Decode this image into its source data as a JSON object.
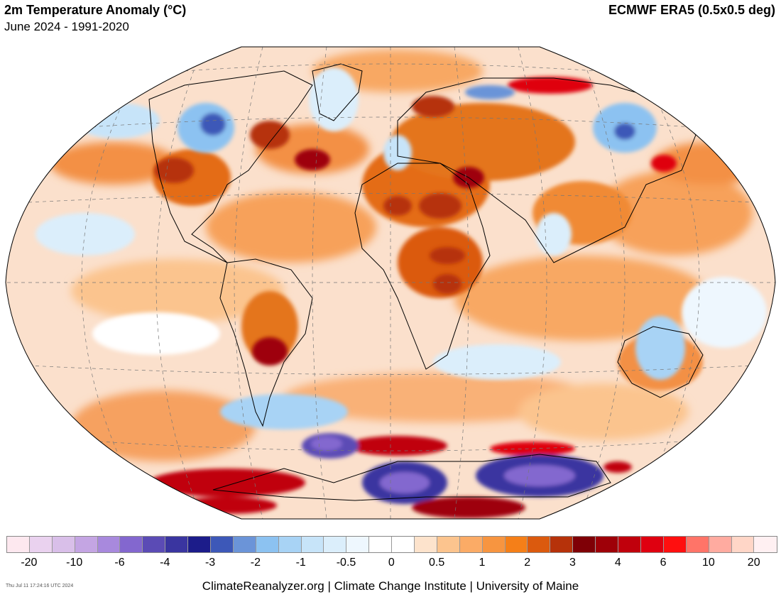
{
  "header": {
    "title": "2m Temperature Anomaly (°C)",
    "period": "June 2024 - 1991-2020",
    "dataset": "ECMWF ERA5 (0.5x0.5 deg)"
  },
  "map": {
    "projection": "robinson",
    "graticule": "dashed",
    "ocean_background_color": "#fbe0cc",
    "anomaly_palette_note": "orange/red = warm, blue/purple = cold"
  },
  "legend": {
    "colors": [
      "#fde8ef",
      "#ead2ef",
      "#d9bfe9",
      "#c4a5e3",
      "#a889dd",
      "#8367cf",
      "#5b4bb5",
      "#3a35a0",
      "#1c1c8a",
      "#3d58b8",
      "#6b94d8",
      "#8cc2f1",
      "#a8d3f5",
      "#c7e4f9",
      "#dbeefb",
      "#eef7fe",
      "#ffffff",
      "#ffffff",
      "#fde3cc",
      "#fcc48e",
      "#fbab66",
      "#f79540",
      "#f57f18",
      "#db5a0e",
      "#b6320a",
      "#7f0006",
      "#9e0008",
      "#c0000c",
      "#df0010",
      "#ff0f0f",
      "#ff7468",
      "#ffaba0",
      "#ffd6c7",
      "#fff0f2"
    ],
    "labels": [
      "-20",
      "-10",
      "-6",
      "-4",
      "-3",
      "-2",
      "-1",
      "-0.5",
      "0",
      "0.5",
      "1",
      "2",
      "3",
      "4",
      "6",
      "10",
      "20"
    ]
  },
  "footer": {
    "timestamp": "Thu Jul 11 17:24:16 UTC 2024",
    "credits": "ClimateReanalyzer.org | Climate Change Institute | University of Maine"
  }
}
